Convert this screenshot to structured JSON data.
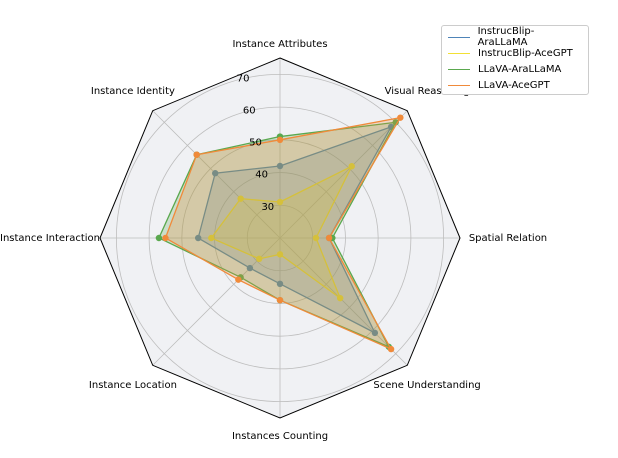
{
  "chart_data": {
    "type": "radar",
    "categories": [
      "Instance Attributes",
      "Visual Reasoning",
      "Spatial Relation",
      "Scene Understanding",
      "Instances Counting",
      "Instance Location",
      "Instance Interaction",
      "Instance Identity"
    ],
    "rlim": [
      20,
      75
    ],
    "rticks": [
      30,
      40,
      50,
      60,
      70
    ],
    "grid": true,
    "legend_placement": "top-right",
    "series": [
      {
        "name": "InstrucBlip-AraLLaMA",
        "color": "#4e84b8",
        "values": [
          42,
          68,
          35,
          61,
          34,
          33,
          45,
          48
        ]
      },
      {
        "name": "InstrucBlip-AceGPT",
        "color": "#f2e034",
        "values": [
          31,
          51,
          31,
          46,
          25,
          29,
          41,
          37
        ]
      },
      {
        "name": "LLaVA-AraLLaMA",
        "color": "#5aa84e",
        "values": [
          51,
          70,
          36,
          67,
          39,
          37,
          57,
          56
        ]
      },
      {
        "name": "LLaVA-AceGPT",
        "color": "#f08a3a",
        "values": [
          50,
          72,
          35,
          68,
          39,
          38,
          55,
          56
        ]
      }
    ]
  }
}
